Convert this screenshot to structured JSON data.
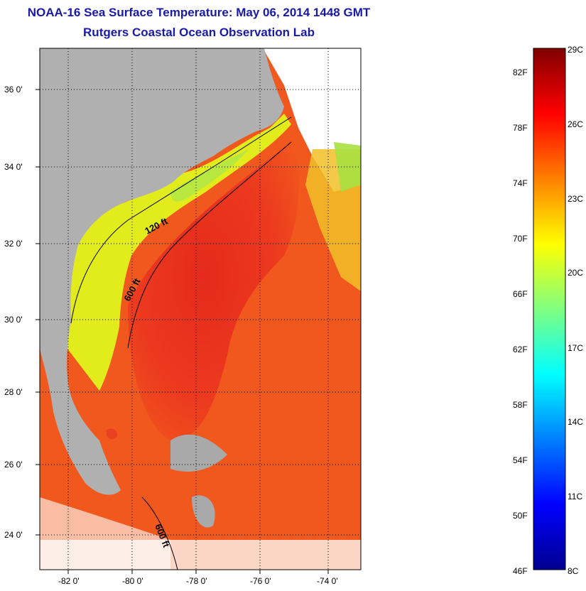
{
  "header": {
    "title": "NOAA-16 Sea Surface Temperature:  May 06, 2014 1448 GMT",
    "subtitle": "Rutgers Coastal Ocean Observation Lab"
  },
  "map": {
    "lat_labels": [
      "36 0'",
      "34 0'",
      "32 0'",
      "30 0'",
      "28 0'",
      "26 0'",
      "24 0'"
    ],
    "lon_labels": [
      "-82 0'",
      "-80 0'",
      "-78 0'",
      "-76 0'",
      "-74 0'"
    ],
    "contour_labels": [
      "120 ft",
      "600 ft",
      "600 ft"
    ],
    "colors": {
      "land": "#b0b0b0",
      "gulf_stream": "#e8281e",
      "shelf": "#d8f020",
      "cloud": "#ffffff"
    }
  },
  "colorbar": {
    "fahrenheit_labels": [
      "82F",
      "78F",
      "74F",
      "70F",
      "66F",
      "62F",
      "58F",
      "54F",
      "50F",
      "46F"
    ],
    "celsius_labels": [
      "29C",
      "26C",
      "23C",
      "20C",
      "17C",
      "14C",
      "11C",
      "8C"
    ]
  }
}
